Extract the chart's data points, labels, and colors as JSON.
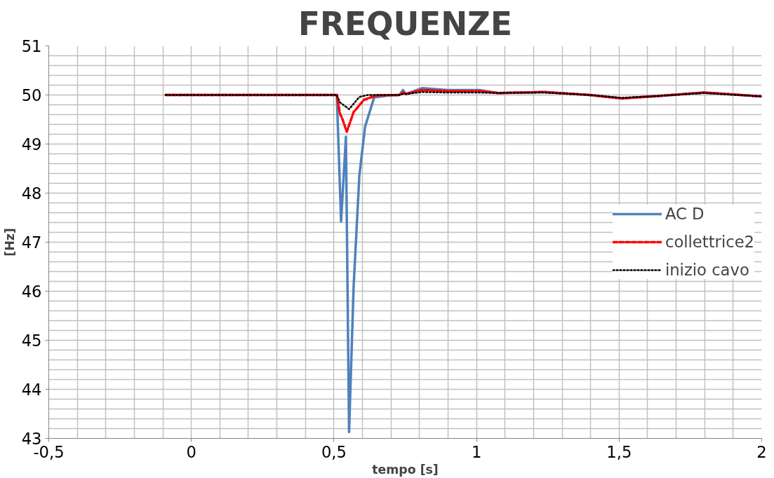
{
  "chart_data": {
    "type": "line",
    "title": "FREQUENZE",
    "xlabel": "tempo [s]",
    "ylabel": "[Hz]",
    "xlim": [
      -0.5,
      2
    ],
    "ylim": [
      43,
      51
    ],
    "xticks": [
      {
        "value": -0.5,
        "label": "-0,5"
      },
      {
        "value": -0.4,
        "label": null
      },
      {
        "value": -0.3,
        "label": null
      },
      {
        "value": -0.2,
        "label": null
      },
      {
        "value": -0.1,
        "label": null
      },
      0,
      {
        "value": 0.1,
        "label": null
      },
      {
        "value": 0.2,
        "label": null
      },
      {
        "value": 0.3,
        "label": null
      },
      {
        "value": 0.4,
        "label": null
      },
      {
        "value": 0.5,
        "label": "0,5"
      },
      {
        "value": 0.6,
        "label": null
      },
      {
        "value": 0.7,
        "label": null
      },
      {
        "value": 0.8,
        "label": null
      },
      {
        "value": 0.9,
        "label": null
      },
      1,
      {
        "value": 1.1,
        "label": null
      },
      {
        "value": 1.2,
        "label": null
      },
      {
        "value": 1.3,
        "label": null
      },
      {
        "value": 1.4,
        "label": null
      },
      {
        "value": 1.5,
        "label": "1,5"
      },
      {
        "value": 1.6,
        "label": null
      },
      {
        "value": 1.7,
        "label": null
      },
      {
        "value": 1.8,
        "label": null
      },
      {
        "value": 1.9,
        "label": null
      },
      2
    ],
    "yticks": [
      43,
      {
        "value": 43.2,
        "label": null
      },
      {
        "value": 43.4,
        "label": null
      },
      {
        "value": 43.6,
        "label": null
      },
      {
        "value": 43.8,
        "label": null
      },
      44,
      {
        "value": 44.2,
        "label": null
      },
      {
        "value": 44.4,
        "label": null
      },
      {
        "value": 44.6,
        "label": null
      },
      {
        "value": 44.8,
        "label": null
      },
      45,
      {
        "value": 45.2,
        "label": null
      },
      {
        "value": 45.4,
        "label": null
      },
      {
        "value": 45.6,
        "label": null
      },
      {
        "value": 45.8,
        "label": null
      },
      46,
      {
        "value": 46.2,
        "label": null
      },
      {
        "value": 46.4,
        "label": null
      },
      {
        "value": 46.6,
        "label": null
      },
      {
        "value": 46.8,
        "label": null
      },
      47,
      {
        "value": 47.2,
        "label": null
      },
      {
        "value": 47.4,
        "label": null
      },
      {
        "value": 47.6,
        "label": null
      },
      {
        "value": 47.8,
        "label": null
      },
      48,
      {
        "value": 48.2,
        "label": null
      },
      {
        "value": 48.4,
        "label": null
      },
      {
        "value": 48.6,
        "label": null
      },
      {
        "value": 48.8,
        "label": null
      },
      49,
      {
        "value": 49.2,
        "label": null
      },
      {
        "value": 49.4,
        "label": null
      },
      {
        "value": 49.6,
        "label": null
      },
      {
        "value": 49.8,
        "label": null
      },
      50,
      {
        "value": 50.2,
        "label": null
      },
      {
        "value": 50.4,
        "label": null
      },
      {
        "value": 50.6,
        "label": null
      },
      {
        "value": 50.8,
        "label": null
      },
      51
    ],
    "grid": true,
    "legend": "right",
    "series": [
      {
        "name": "AC D",
        "color": "#4f81bd",
        "line_style": "solid",
        "x": [
          -0.09,
          0.51,
          0.525,
          0.542,
          0.553,
          0.569,
          0.589,
          0.609,
          0.641,
          0.689,
          0.73,
          0.742,
          0.752,
          0.81,
          0.898,
          1.01,
          1.075,
          1.236,
          1.396,
          1.509,
          1.637,
          1.798,
          2.0
        ],
        "values": [
          50,
          50,
          47.42,
          49.15,
          43.13,
          46.1,
          48.35,
          49.35,
          49.95,
          49.99,
          50,
          50.1,
          50.02,
          50.14,
          50.1,
          50.1,
          50.04,
          50.06,
          50.0,
          49.93,
          49.98,
          50.05,
          49.97
        ]
      },
      {
        "name": "collettrice2",
        "color": "#ff0000",
        "line_style": "dashed",
        "x": [
          -0.09,
          0.51,
          0.521,
          0.529,
          0.545,
          0.569,
          0.605,
          0.649,
          0.73,
          0.742,
          0.752,
          0.81,
          0.898,
          1.01,
          1.075,
          1.236,
          1.396,
          1.509,
          1.637,
          1.798,
          2.0
        ],
        "values": [
          50,
          50,
          49.62,
          49.52,
          49.25,
          49.65,
          49.9,
          49.99,
          50,
          50.05,
          50.02,
          50.1,
          50.08,
          50.08,
          50.04,
          50.06,
          50.0,
          49.93,
          49.98,
          50.05,
          49.97
        ]
      },
      {
        "name": "inizio cavo",
        "color": "#000000",
        "line_style": "dotted",
        "x": [
          -0.09,
          0.51,
          0.521,
          0.553,
          0.589,
          0.62,
          0.73,
          0.742,
          0.752,
          0.81,
          0.898,
          1.01,
          1.075,
          1.236,
          1.396,
          1.509,
          1.637,
          1.798,
          2.0
        ],
        "values": [
          50,
          50,
          49.85,
          49.71,
          49.96,
          50,
          50,
          50.02,
          50.02,
          50.06,
          50.05,
          50.05,
          50.04,
          50.05,
          50.0,
          49.94,
          49.98,
          50.04,
          49.97
        ]
      }
    ]
  }
}
